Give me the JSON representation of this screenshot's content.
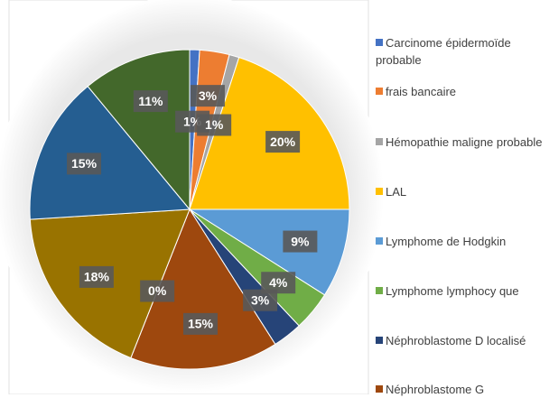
{
  "chart_data": {
    "type": "pie",
    "categories": [
      "Carcinome épidermoïde probable",
      "frais bancaire",
      "Hémopathie maligne probable",
      "LAL",
      "Lymphome de Hodgkin",
      "Lymphome lymphocy que",
      "Néphroblastome D localisé",
      "Néphroblastome G",
      null,
      null,
      null,
      null
    ],
    "values": [
      1,
      3,
      1,
      20,
      9,
      4,
      3,
      15,
      0,
      18,
      15,
      11
    ],
    "value_labels": [
      "1%",
      "3%",
      "1%",
      "20%",
      "9%",
      "4%",
      "3%",
      "15%",
      "0%",
      "18%",
      "15%",
      "11%"
    ],
    "colors": [
      "#4472c4",
      "#ed7d31",
      "#a5a5a5",
      "#ffc000",
      "#5b9bd5",
      "#70ad47",
      "#264478",
      "#9e480e",
      "#636363",
      "#997300",
      "#255e91",
      "#43682b"
    ]
  }
}
